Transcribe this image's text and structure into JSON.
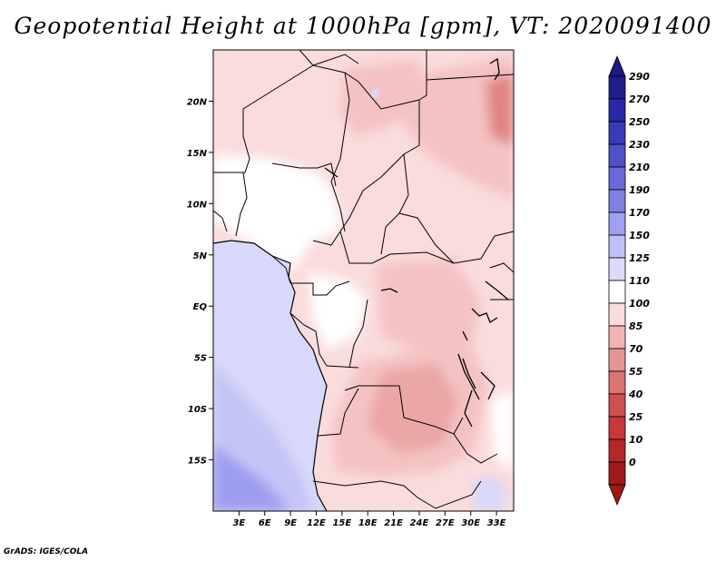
{
  "title": "Geopotential Height at 1000hPa [gpm], VT: 2020091400",
  "footer": "GrADS: IGES/COLA",
  "map": {
    "lon_range": [
      0,
      35
    ],
    "lat_range": [
      -20,
      25
    ],
    "lat_ticks": [
      {
        "value": 20,
        "label": "20N"
      },
      {
        "value": 15,
        "label": "15N"
      },
      {
        "value": 10,
        "label": "10N"
      },
      {
        "value": 5,
        "label": "5N"
      },
      {
        "value": 0,
        "label": "EQ"
      },
      {
        "value": -5,
        "label": "5S"
      },
      {
        "value": -10,
        "label": "10S"
      },
      {
        "value": -15,
        "label": "15S"
      }
    ],
    "lon_ticks": [
      {
        "value": 3,
        "label": "3E"
      },
      {
        "value": 6,
        "label": "6E"
      },
      {
        "value": 9,
        "label": "9E"
      },
      {
        "value": 12,
        "label": "12E"
      },
      {
        "value": 15,
        "label": "15E"
      },
      {
        "value": 18,
        "label": "18E"
      },
      {
        "value": 21,
        "label": "21E"
      },
      {
        "value": 24,
        "label": "24E"
      },
      {
        "value": 27,
        "label": "27E"
      },
      {
        "value": 30,
        "label": "30E"
      },
      {
        "value": 33,
        "label": "33E"
      }
    ]
  },
  "colorbar": {
    "labels": [
      "290",
      "270",
      "250",
      "230",
      "210",
      "190",
      "170",
      "150",
      "125",
      "110",
      "100",
      "85",
      "70",
      "55",
      "40",
      "25",
      "10",
      "0"
    ],
    "colors": [
      "#1e1e8c",
      "#2828a8",
      "#3a3ab8",
      "#5050c8",
      "#6868d8",
      "#8080e4",
      "#a0a0f0",
      "#c0c0f8",
      "#dcdcfa",
      "#ffffff",
      "#fadcdc",
      "#f0b4b4",
      "#e49494",
      "#dc7474",
      "#d05050",
      "#c83838",
      "#b42828",
      "#a01818"
    ],
    "top_color": "#1a1a80",
    "bottom_color": "#a01818"
  },
  "field_colors": {
    "ocean_low": "#d8d8fa",
    "ocean_mid": "#c4c4f6",
    "ocean_deep": "#9e9ef0",
    "land_100": "#fadcdc",
    "land_85": "#f4c2c2",
    "land_70": "#eba6a6",
    "land_55": "#e08484",
    "land_110": "#ffffff"
  }
}
